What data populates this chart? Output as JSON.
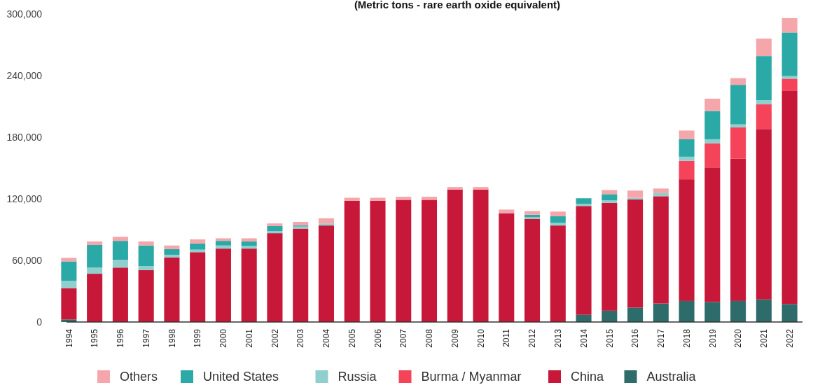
{
  "chart_data": {
    "type": "bar",
    "subtitle": "(Metric tons - rare earth oxide equivalent)",
    "stacked": true,
    "legend": "bottom",
    "grid": false,
    "categories": [
      "1994",
      "1995",
      "1996",
      "1997",
      "1998",
      "1999",
      "2000",
      "2001",
      "2002",
      "2003",
      "2004",
      "2005",
      "2006",
      "2007",
      "2008",
      "2009",
      "2010",
      "2011",
      "2012",
      "2013",
      "2014",
      "2015",
      "2016",
      "2017",
      "2018",
      "2019",
      "2020",
      "2021",
      "2022"
    ],
    "ylim": [
      0,
      300000
    ],
    "yticks": [
      0,
      {
        "value": 60000,
        "label": "60,000"
      },
      {
        "value": 120000,
        "label": "120,000"
      },
      {
        "value": 180000,
        "label": "180,000"
      },
      {
        "value": 240000,
        "label": "240,000"
      },
      {
        "value": 300000,
        "label": "300,000"
      }
    ],
    "series": [
      {
        "name": "Australia",
        "color": "#2e6b6b",
        "values": [
          2500,
          0,
          0,
          0,
          0,
          0,
          0,
          0,
          0,
          0,
          0,
          0,
          0,
          0,
          0,
          0,
          0,
          0,
          null,
          null,
          7000,
          11000,
          14000,
          18000,
          20500,
          19500,
          20500,
          22000,
          17500
        ]
      },
      {
        "name": "China",
        "color": "#c8183a",
        "values": [
          30500,
          47000,
          53000,
          50500,
          63000,
          68000,
          71500,
          71500,
          86500,
          91000,
          94000,
          118000,
          118000,
          119000,
          119000,
          129000,
          129000,
          106000,
          100500,
          94000,
          106000,
          105000,
          105500,
          104500,
          118500,
          131000,
          138500,
          166000,
          208000
        ]
      },
      {
        "name": "Burma / Myanmar",
        "color": "#f5445a",
        "values": [
          0,
          0,
          0,
          0,
          0,
          0,
          0,
          0,
          0,
          0,
          0,
          0,
          0,
          0,
          0,
          0,
          0,
          0,
          0,
          0,
          0,
          0,
          0,
          0,
          18000,
          23500,
          30500,
          24000,
          11500
        ]
      },
      {
        "name": "Russia",
        "color": "#8fd0cf",
        "values": [
          7000,
          6000,
          7500,
          4000,
          2500,
          2500,
          3000,
          2500,
          2000,
          2000,
          2000,
          0,
          0,
          0,
          0,
          0,
          0,
          0,
          1500,
          2500,
          2000,
          2500,
          1500,
          3000,
          4000,
          4000,
          3000,
          4000,
          2500
        ]
      },
      {
        "name": "United States",
        "color": "#2aa9a6",
        "values": [
          19000,
          22000,
          18500,
          20000,
          5500,
          6000,
          4500,
          4500,
          5000,
          1000,
          0,
          0,
          0,
          0,
          0,
          0,
          0,
          0,
          2500,
          6500,
          5500,
          6000,
          0,
          0,
          17000,
          27500,
          38500,
          43000,
          42500
        ]
      },
      {
        "name": "Others",
        "color": "#f4a6ab",
        "values": [
          3500,
          3500,
          4000,
          4000,
          3500,
          4000,
          2500,
          3000,
          2500,
          3500,
          5000,
          3000,
          3000,
          3000,
          3000,
          2500,
          2500,
          3500,
          3500,
          4500,
          0,
          4000,
          7000,
          4500,
          8500,
          12000,
          6500,
          17000,
          14000
        ]
      }
    ]
  }
}
